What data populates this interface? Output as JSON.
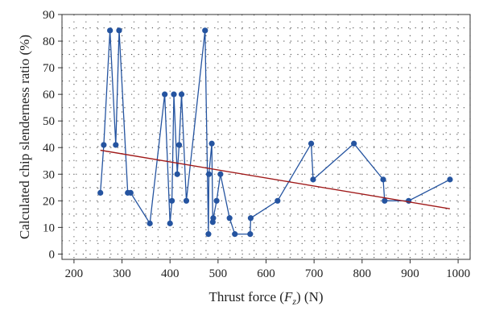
{
  "chart_data": {
    "type": "scatter",
    "xlabel_parts": {
      "prefix": "Thrust force (",
      "var": "F",
      "sub": "z",
      "suffix": ") (N)"
    },
    "ylabel": "Calculated chip slenderness ratio (%)",
    "xlim": [
      175,
      1025
    ],
    "ylim": [
      -2,
      90
    ],
    "xticks": [
      200,
      300,
      400,
      500,
      600,
      700,
      800,
      900,
      1000
    ],
    "yticks": [
      0,
      10,
      20,
      30,
      40,
      50,
      60,
      70,
      80,
      90
    ],
    "grid": "dotted",
    "series": [
      {
        "style": "line-with-markers",
        "color": "#2554a0",
        "points": [
          [
            255,
            23
          ],
          [
            262,
            41
          ],
          [
            275,
            84
          ],
          [
            287,
            41
          ],
          [
            294,
            84
          ],
          [
            312,
            23
          ],
          [
            318,
            23
          ],
          [
            358,
            11.5
          ],
          [
            389,
            60
          ],
          [
            400,
            11.5
          ],
          [
            404,
            20
          ],
          [
            408,
            60
          ],
          [
            415,
            30
          ],
          [
            419,
            41
          ],
          [
            424,
            60
          ],
          [
            434,
            20
          ],
          [
            473,
            84
          ],
          [
            480,
            7.5
          ],
          [
            481,
            30
          ],
          [
            487,
            41.5
          ],
          [
            489,
            12
          ],
          [
            490,
            13.5
          ],
          [
            497,
            20
          ],
          [
            505,
            30
          ],
          [
            524,
            13.5
          ],
          [
            535,
            7.5
          ],
          [
            567,
            7.5
          ],
          [
            568,
            13.5
          ],
          [
            624,
            20
          ],
          [
            694,
            41.5
          ],
          [
            698,
            28
          ],
          [
            783,
            41.5
          ],
          [
            844,
            28
          ],
          [
            847,
            20
          ],
          [
            897,
            20
          ],
          [
            983,
            28
          ]
        ]
      },
      {
        "style": "trend-line",
        "color": "#a01a1a",
        "points": [
          [
            255,
            39
          ],
          [
            983,
            17
          ]
        ]
      }
    ]
  }
}
